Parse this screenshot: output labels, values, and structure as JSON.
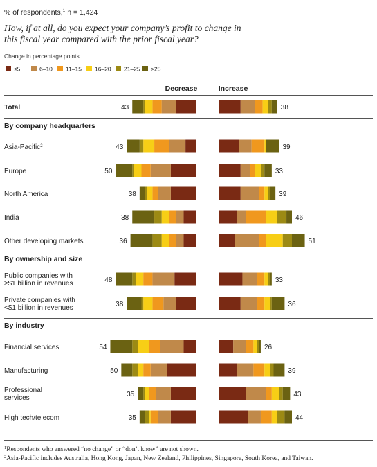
{
  "header": {
    "respondents": "% of respondents,",
    "respondents_sup": "1",
    "respondents_n": "n = 1,424",
    "question_line1": "How, if at all, do you expect your company’s profit to change in",
    "question_line2": "this fiscal year compared with the prior fiscal year?"
  },
  "colors": {
    "c1": "#7a2a14",
    "c2": "#c0894a",
    "c3": "#f0981e",
    "c4": "#f7ce16",
    "c5": "#9c8a14",
    "c6": "#6b6212",
    "rule": "#555555",
    "text": "#222222"
  },
  "chart_data": {
    "type": "bar",
    "legend_title": "Change in percentage points",
    "legend": [
      "≤5",
      "6–10",
      "11–15",
      "16–20",
      "21–25",
      ">25"
    ],
    "column_headers": {
      "decrease": "Decrease",
      "increase": "Increase"
    },
    "groups": [
      {
        "title": "",
        "rows": [
          {
            "label": [
              "Total"
            ],
            "bold": true,
            "decrease_total": 43,
            "increase_total": 38,
            "decrease": [
              11,
              8,
              5,
              4,
              1,
              6
            ],
            "increase": [
              12,
              8,
              4,
              3,
              2,
              3
            ]
          }
        ]
      },
      {
        "title": "By company headquarters",
        "rows": [
          {
            "label": [
              "Asia-Pacific"
            ],
            "sup": "2",
            "decrease_total": 43,
            "increase_total": 39,
            "decrease": [
              6,
              9,
              8,
              6,
              2,
              7
            ],
            "increase": [
              11,
              7,
              7,
              1,
              0,
              7
            ]
          },
          {
            "label": [
              "Europe"
            ],
            "decrease_total": 50,
            "increase_total": 33,
            "decrease": [
              14,
              11,
              5,
              4,
              1,
              9
            ],
            "increase": [
              12,
              5,
              3,
              3,
              2,
              4
            ]
          },
          {
            "label": [
              "North America"
            ],
            "decrease_total": 38,
            "increase_total": 39,
            "decrease": [
              14,
              7,
              3,
              3,
              1,
              3
            ],
            "increase": [
              12,
              10,
              3,
              2,
              1,
              3
            ]
          },
          {
            "label": [
              "India"
            ],
            "decrease_total": 38,
            "increase_total": 46,
            "decrease": [
              7,
              4,
              4,
              4,
              4,
              12
            ],
            "increase": [
              10,
              5,
              11,
              6,
              5,
              3
            ]
          },
          {
            "label": [
              "Other developing markets"
            ],
            "decrease_total": 36,
            "increase_total": 51,
            "decrease": [
              7,
              4,
              4,
              4,
              5,
              12
            ],
            "increase": [
              9,
              13,
              4,
              9,
              5,
              7
            ]
          }
        ]
      },
      {
        "title": "By ownership and size",
        "rows": [
          {
            "label": [
              "Public companies with",
              "≥$1 billion in revenues"
            ],
            "decrease_total": 48,
            "increase_total": 33,
            "decrease": [
              12,
              12,
              5,
              4,
              2,
              9
            ],
            "increase": [
              13,
              8,
              4,
              2,
              1,
              1
            ]
          },
          {
            "label": [
              "Private companies with",
              "<$1 billion in revenues"
            ],
            "decrease_total": 38,
            "increase_total": 36,
            "decrease": [
              11,
              7,
              6,
              5,
              1,
              8
            ],
            "increase": [
              12,
              9,
              4,
              3,
              1,
              7
            ]
          }
        ]
      },
      {
        "title": "By industry",
        "rows": [
          {
            "label": [
              "Financial services"
            ],
            "decrease_total": 54,
            "increase_total": 26,
            "decrease": [
              7,
              13,
              6,
              6,
              3,
              12
            ],
            "increase": [
              8,
              7,
              4,
              2,
              1,
              1
            ]
          },
          {
            "label": [
              "Manufacturing"
            ],
            "decrease_total": 50,
            "increase_total": 39,
            "decrease": [
              16,
              9,
              4,
              3,
              3,
              6
            ],
            "increase": [
              10,
              9,
              6,
              3,
              2,
              6
            ]
          },
          {
            "label": [
              "Professional",
              "services"
            ],
            "decrease_total": 35,
            "increase_total": 43,
            "decrease": [
              14,
              8,
              4,
              2,
              1,
              3
            ],
            "increase": [
              15,
              11,
              3,
              4,
              2,
              4
            ]
          },
          {
            "label": [
              "High tech/telecom"
            ],
            "decrease_total": 35,
            "increase_total": 44,
            "decrease": [
              14,
              7,
              4,
              1,
              2,
              3
            ],
            "increase": [
              16,
              7,
              6,
              3,
              4,
              4
            ]
          }
        ]
      }
    ]
  },
  "footnotes": [
    {
      "mark": "1",
      "text": "Respondents who answered “no change” or “don’t know” are not shown."
    },
    {
      "mark": "2",
      "text": "Asia-Pacific includes Australia, Hong Kong, Japan, New Zealand, Philippines, Singapore, South Korea, and Taiwan."
    }
  ]
}
